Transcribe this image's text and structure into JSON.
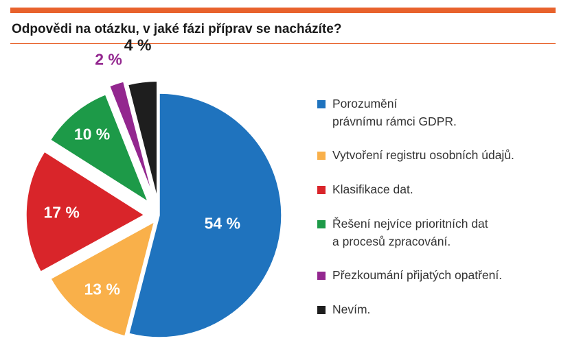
{
  "chart_data": {
    "type": "pie",
    "title": "Odpovědi na otázku, v jaké fázi příprav se nacházíte?",
    "slices": [
      {
        "label": "Porozumění\nprávnímu rámci GDPR.",
        "value": 54,
        "display": "54 %",
        "color": "#1f73be",
        "exploded": false
      },
      {
        "label": "Vytvoření registru osobních údajů.",
        "value": 13,
        "display": "13 %",
        "color": "#f9b04a",
        "exploded": true
      },
      {
        "label": "Klasifikace dat.",
        "value": 17,
        "display": "17 %",
        "color": "#d9252a",
        "exploded": true
      },
      {
        "label": "Řešení nejvíce prioritních dat\na procesů zpracování.",
        "value": 10,
        "display": "10 %",
        "color": "#1d9a48",
        "exploded": true
      },
      {
        "label": "Přezkoumání přijatých opatření.",
        "value": 2,
        "display": "2 %",
        "color": "#93278f",
        "exploded": true
      },
      {
        "label": "Nevím.",
        "value": 4,
        "display": "4 %",
        "color": "#1e1e1e",
        "exploded": true
      }
    ],
    "legend_position": "right"
  }
}
